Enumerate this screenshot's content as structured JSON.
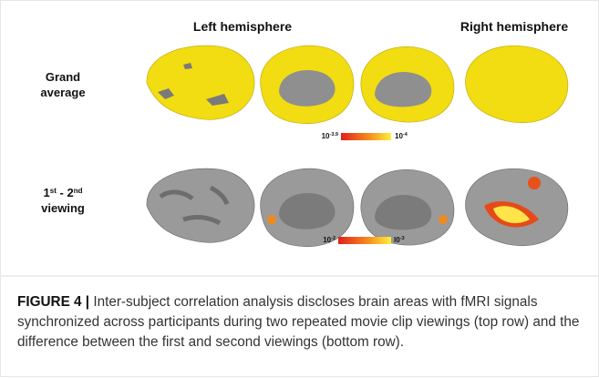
{
  "figure": {
    "column_headers": [
      "Left hemisphere",
      "Right hemisphere"
    ],
    "rows": [
      {
        "label_lines": [
          [
            "Grand"
          ],
          [
            "average"
          ]
        ],
        "colorbar": {
          "low": {
            "base": "10",
            "exp": "-3.9"
          },
          "high": {
            "base": "10",
            "exp": "-4"
          }
        }
      },
      {
        "label_lines": [
          [
            "1",
            "st",
            " - 2",
            "nd"
          ],
          [
            "viewing"
          ]
        ],
        "colorbar": {
          "low": {
            "base": "10",
            "exp": "-2"
          },
          "high": {
            "base": "l0",
            "exp": "-3"
          }
        }
      }
    ]
  },
  "caption": {
    "label": "FIGURE 4 |",
    "text": " Inter-subject correlation analysis discloses brain areas with fMRI signals synchronized across participants during two repeated movie clip viewings (top row) and the difference between the first and second viewings (bottom row)."
  }
}
